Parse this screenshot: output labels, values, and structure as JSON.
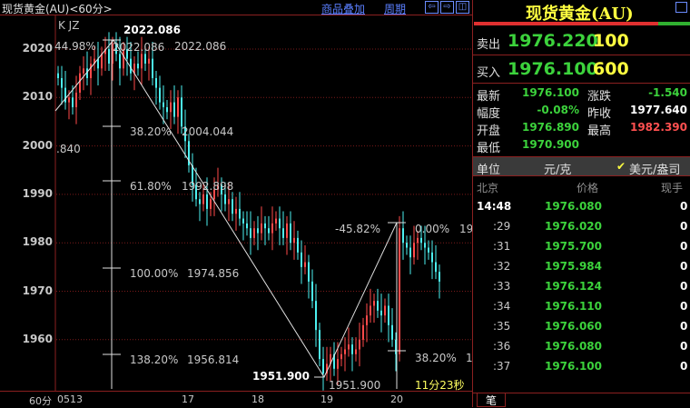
{
  "topbar": {
    "title": "现货黄金(AU)<60分>",
    "overlay_link": "商品叠加",
    "period_link": "周期",
    "nav_left": "⇦",
    "nav_right": "⇨",
    "nav_layout": "◫"
  },
  "chart": {
    "indicator_label": "K  JZ",
    "yticks": [
      2020,
      2010,
      2000,
      1990,
      1980,
      1970,
      1960
    ],
    "xticks": [
      {
        "label": "0513"
      },
      {
        "label": "17"
      },
      {
        "label": "18"
      },
      {
        "label": "19"
      },
      {
        "label": "20"
      }
    ],
    "period_label": "60分",
    "fib_labels": {
      "a": "44.98%",
      "b": "2022.086",
      "c": "2022.086",
      "d": "2022.086",
      "e": ".840",
      "f": "38.20%",
      "g": "2004.044",
      "h": "61.80%",
      "i": "1992.898",
      "j": "100.00%",
      "k": "1974.856",
      "l": "138.20%",
      "m": "1956.814",
      "n": "1951.900",
      "o": "1951.900",
      "p": "-45.82%",
      "q": "0.00%",
      "r": "19",
      "s": "38.20%",
      "t": "1"
    },
    "countdown": "11分23秒",
    "colors": {
      "up": "#ff4a4a",
      "down": "#4cf0f0",
      "grid": "#7a1a1a"
    },
    "closes": [
      2014,
      2012,
      2009,
      2010,
      2008,
      2011,
      2015,
      2016,
      2014,
      2017,
      2018,
      2016,
      2019,
      2020,
      2017,
      2021,
      2019,
      2016,
      2020,
      2018,
      2015,
      2017,
      2016,
      2019,
      2017,
      2018,
      2014,
      2012,
      2009,
      2008,
      2007,
      2009,
      2006,
      2010,
      2004,
      2001,
      1996,
      1992,
      1989,
      1988,
      1990,
      1987,
      1989,
      1991,
      1992,
      1990,
      1988,
      1989,
      1986,
      1987,
      1985,
      1984,
      1983,
      1981,
      1983,
      1982,
      1984,
      1983,
      1982,
      1984,
      1985,
      1983,
      1981,
      1984,
      1980,
      1981,
      1978,
      1975,
      1976,
      1972,
      1968,
      1962,
      1956,
      1953,
      1955,
      1957,
      1954,
      1956,
      1957,
      1958,
      1959,
      1957,
      1958,
      1960,
      1963,
      1965,
      1967,
      1968,
      1966,
      1965,
      1967,
      1963,
      1960,
      1957,
      1983,
      1980,
      1979,
      1977,
      1980,
      1981,
      1980,
      1979,
      1978,
      1976,
      1974,
      1972
    ]
  },
  "panel": {
    "title": "现货黄金(AU)",
    "sell_label": "卖出",
    "sell_price": "1976.220",
    "sell_vol": "100",
    "buy_label": "买入",
    "buy_price": "1976.100",
    "buy_vol": "600",
    "stats": [
      {
        "k1": "最新",
        "v1": "1976.100",
        "k2": "涨跌",
        "v2": "-1.540"
      },
      {
        "k1": "幅度",
        "v1": "-0.08%",
        "k2": "昨收",
        "v2": "1977.640"
      },
      {
        "k1": "开盘",
        "v1": "1976.890",
        "k2": "最高",
        "v2": "1982.390"
      },
      {
        "k1": "最低",
        "v1": "1970.900",
        "k2": "",
        "v2": ""
      }
    ],
    "unit_label": "单位",
    "unit_cny": "元/克",
    "unit_usd": "美元/盎司",
    "tick_header": {
      "time": "北京",
      "price": "价格",
      "vol": "现手"
    },
    "ticks": [
      {
        "t": "14:48",
        "p": "1976.080",
        "v": "0"
      },
      {
        "t": ":29",
        "p": "1976.020",
        "v": "0"
      },
      {
        "t": ":31",
        "p": "1975.700",
        "v": "0"
      },
      {
        "t": ":32",
        "p": "1975.984",
        "v": "0"
      },
      {
        "t": ":33",
        "p": "1976.124",
        "v": "0"
      },
      {
        "t": ":34",
        "p": "1976.110",
        "v": "0"
      },
      {
        "t": ":35",
        "p": "1976.060",
        "v": "0"
      },
      {
        "t": ":36",
        "p": "1976.080",
        "v": "0"
      },
      {
        "t": ":37",
        "p": "1976.100",
        "v": "0"
      }
    ],
    "bottom_tab": "笔"
  }
}
